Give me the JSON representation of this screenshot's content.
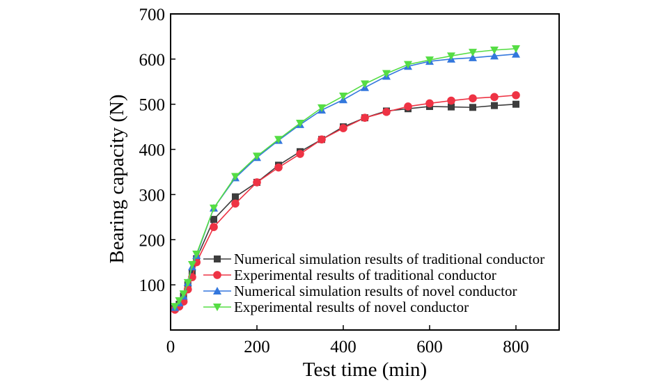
{
  "chart_data": {
    "type": "line",
    "title": "",
    "xlabel": "Test time (min)",
    "ylabel": "Bearing capacity (N)",
    "xlim": [
      0,
      900
    ],
    "ylim": [
      0,
      700
    ],
    "xticks": [
      0,
      200,
      400,
      600,
      800
    ],
    "yticks": [
      100,
      200,
      300,
      400,
      500,
      600,
      700
    ],
    "x_tick_labels": [
      "0",
      "200",
      "400",
      "600",
      "800"
    ],
    "y_tick_labels": [
      "100",
      "200",
      "300",
      "400",
      "500",
      "600",
      "700"
    ],
    "grid": false,
    "legend_position": "bottom-right",
    "series": [
      {
        "name": "Numerical simulation results of traditional conductor",
        "color": "#3d3d3d",
        "marker": "square",
        "x": [
          10,
          20,
          30,
          40,
          50,
          60,
          100,
          150,
          200,
          250,
          300,
          350,
          400,
          450,
          500,
          550,
          600,
          650,
          700,
          750,
          800
        ],
        "y": [
          48,
          57,
          75,
          100,
          125,
          158,
          245,
          295,
          327,
          365,
          395,
          422,
          450,
          470,
          485,
          490,
          495,
          494,
          493,
          497,
          500
        ]
      },
      {
        "name": "Experimental results of traditional conductor",
        "color": "#ee3344",
        "marker": "circle",
        "x": [
          10,
          20,
          30,
          40,
          50,
          60,
          100,
          150,
          200,
          250,
          300,
          350,
          400,
          450,
          500,
          550,
          600,
          650,
          700,
          750,
          800
        ],
        "y": [
          45,
          52,
          63,
          90,
          117,
          150,
          228,
          280,
          327,
          360,
          390,
          422,
          447,
          470,
          483,
          495,
          502,
          508,
          513,
          516,
          520
        ]
      },
      {
        "name": "Numerical simulation results of novel conductor",
        "color": "#3377dd",
        "marker": "triangle-up",
        "x": [
          10,
          20,
          30,
          40,
          50,
          60,
          100,
          150,
          200,
          250,
          300,
          350,
          400,
          450,
          500,
          550,
          600,
          650,
          700,
          750,
          800
        ],
        "y": [
          50,
          60,
          75,
          105,
          140,
          165,
          270,
          337,
          382,
          420,
          455,
          487,
          510,
          537,
          562,
          584,
          595,
          600,
          603,
          607,
          611
        ]
      },
      {
        "name": "Experimental results of novel conductor",
        "color": "#55dd44",
        "marker": "triangle-down",
        "x": [
          10,
          20,
          30,
          40,
          50,
          60,
          100,
          150,
          200,
          250,
          300,
          350,
          400,
          450,
          500,
          550,
          600,
          650,
          700,
          750,
          800
        ],
        "y": [
          52,
          65,
          80,
          105,
          145,
          168,
          270,
          340,
          385,
          422,
          458,
          492,
          518,
          545,
          568,
          588,
          598,
          607,
          615,
          620,
          623
        ]
      }
    ]
  }
}
